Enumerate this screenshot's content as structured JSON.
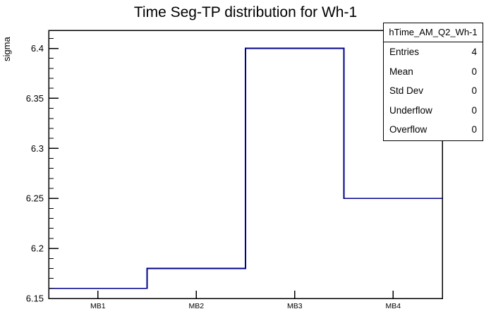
{
  "chart_data": {
    "type": "bar",
    "style": "step-histogram-outline",
    "title": "Time Seg-TP distribution for Wh-1",
    "xlabel": "",
    "ylabel": "sigma",
    "categories": [
      "MB1",
      "MB2",
      "MB3",
      "MB4"
    ],
    "values": [
      6.16,
      6.18,
      6.4,
      6.25
    ],
    "ylim": [
      6.15,
      6.418
    ],
    "y_major_ticks": [
      6.15,
      6.2,
      6.25,
      6.3,
      6.35,
      6.4
    ],
    "y_tick_labels": [
      "6.15",
      "6.2",
      "6.25",
      "6.3",
      "6.35",
      "6.4"
    ],
    "y_minor_tick_step": 0.01,
    "grid": false,
    "legend_position": "none",
    "line_color": "#00008b",
    "frame_color": "#000000",
    "background_color": "#ffffff"
  },
  "stats_box": {
    "title": "hTime_AM_Q2_Wh-1",
    "rows": [
      {
        "label": "Entries",
        "value": "4"
      },
      {
        "label": "Mean",
        "value": "0"
      },
      {
        "label": "Std Dev",
        "value": "0"
      },
      {
        "label": "Underflow",
        "value": "0"
      },
      {
        "label": "Overflow",
        "value": "0"
      }
    ]
  }
}
